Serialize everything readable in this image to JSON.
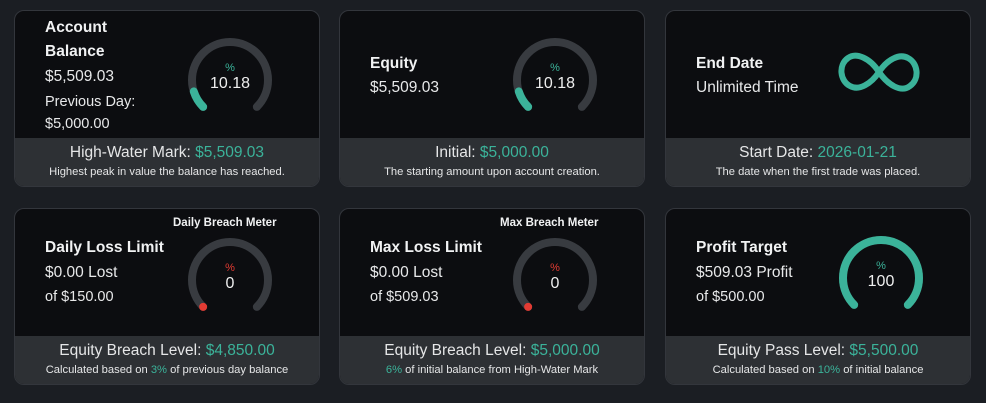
{
  "colors": {
    "accent": "#3bb39a",
    "danger": "#e23b33",
    "track": "#383b40",
    "card_bg": "#0c0d10",
    "footer_bg": "#2d3034"
  },
  "account_balance": {
    "title_line1": "Account",
    "title_line2": "Balance",
    "value": "$5,509.03",
    "prev_label": "Previous Day:",
    "prev_value": "$5,000.00",
    "gauge": {
      "unit": "%",
      "value": "10.18",
      "fraction": 0.1018
    },
    "footer_label": "High-Water Mark: ",
    "footer_value": "$5,509.03",
    "footer_sub": "Highest peak in value the balance has reached."
  },
  "equity": {
    "title": "Equity",
    "value": "$5,509.03",
    "gauge": {
      "unit": "%",
      "value": "10.18",
      "fraction": 0.1018
    },
    "footer_label": "Initial: ",
    "footer_value": "$5,000.00",
    "footer_sub": "The starting amount upon account creation."
  },
  "end_date": {
    "title": "End Date",
    "value": "Unlimited Time",
    "icon": "infinity-icon",
    "footer_label": "Start Date: ",
    "footer_value": "2026-01-21",
    "footer_sub": "The date when the first trade was placed."
  },
  "daily_loss": {
    "meter_title": "Daily Breach Meter",
    "title": "Daily Loss Limit",
    "lost": "$0.00 Lost",
    "of": "of $150.00",
    "gauge": {
      "unit": "%",
      "value": "0",
      "fraction": 0
    },
    "footer_label": "Equity Breach Level: ",
    "footer_value": "$4,850.00",
    "footer_sub_pre": "Calculated based on ",
    "footer_sub_pct": "3%",
    "footer_sub_post": " of previous day balance"
  },
  "max_loss": {
    "meter_title": "Max Breach Meter",
    "title": "Max Loss Limit",
    "lost": "$0.00 Lost",
    "of": "of $509.03",
    "gauge": {
      "unit": "%",
      "value": "0",
      "fraction": 0
    },
    "footer_label": "Equity Breach Level: ",
    "footer_value": "$5,000.00",
    "footer_sub_pct": "6%",
    "footer_sub_post": " of initial balance from High-Water Mark"
  },
  "profit_target": {
    "title": "Profit Target",
    "profit": "$509.03 Profit",
    "of": "of $500.00",
    "gauge": {
      "unit": "%",
      "value": "100",
      "fraction": 1
    },
    "footer_label": "Equity Pass Level: ",
    "footer_value": "$5,500.00",
    "footer_sub_pre": "Calculated based on ",
    "footer_sub_pct": "10%",
    "footer_sub_post": " of initial balance"
  }
}
